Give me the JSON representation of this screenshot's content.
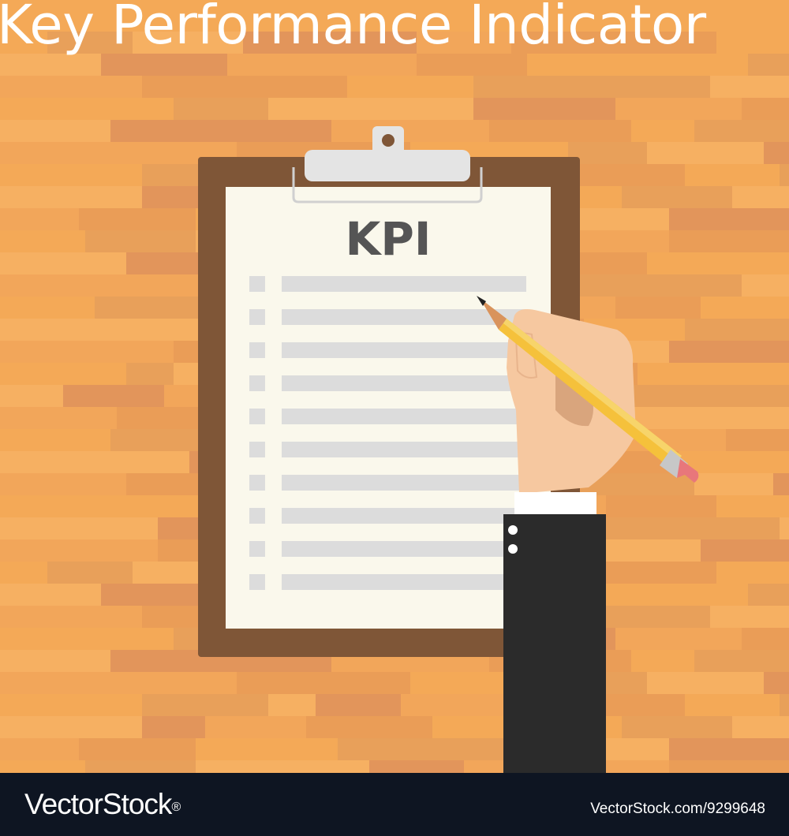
{
  "title": "Key Performance Indicator",
  "clipboard": {
    "heading": "KPI",
    "checklist_row_count": 10
  },
  "footer": {
    "brand": "VectorStock",
    "brand_mark": "®",
    "image_id": "VectorStock.com/9299648"
  },
  "colors": {
    "wood_base": "#f4a957",
    "wood_dark": "#e0915a",
    "board": "#7f5637",
    "paper": "#faf8ec",
    "heading_text": "#555555",
    "checklist_gray": "#dcdcdc",
    "pencil": "#f5c13b",
    "sleeve": "#2b2b2b",
    "skin": "#f6c8a0",
    "footer_bg": "#0e1522"
  },
  "icons": [
    "clipboard-clip-icon",
    "pencil-icon",
    "hand-icon"
  ]
}
